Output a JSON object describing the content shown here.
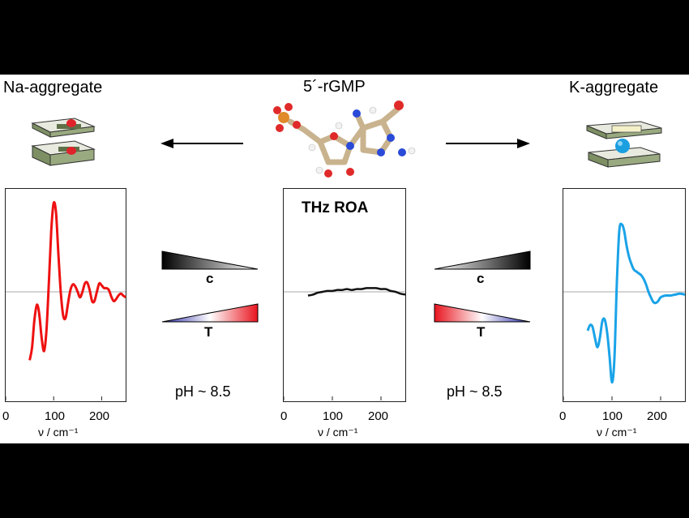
{
  "titles": {
    "left": "Na-aggregate",
    "center": "5´-rGMP",
    "right": "K-aggregate"
  },
  "center_plot_title": "THz ROA",
  "conditions": {
    "left_c_label": "c",
    "left_t_label": "T",
    "right_c_label": "c",
    "right_t_label": "T",
    "ph_left": "pH ~ 8.5",
    "ph_right": "pH ~ 8.5"
  },
  "axis": {
    "ticks": [
      "0",
      "100",
      "200"
    ],
    "xlabel": "ν / cm⁻¹"
  },
  "colors": {
    "na_curve": "#ee1111",
    "k_curve": "#1aa3e8",
    "center_curve": "#111111",
    "hot": "#e8141e",
    "cold": "#2a2aa8"
  },
  "chart_data": [
    {
      "type": "line",
      "title": "",
      "xlabel": "ν / cm⁻¹",
      "xlim": [
        0,
        250
      ],
      "ylim": [
        -1,
        1
      ],
      "series": [
        {
          "name": "",
          "x": [
            50,
            55,
            60,
            65,
            70,
            75,
            80,
            85,
            90,
            95,
            100,
            105,
            110,
            115,
            120,
            125,
            130,
            135,
            140,
            145,
            150,
            155,
            160,
            165,
            170,
            175,
            180,
            185,
            190,
            195,
            200,
            205,
            210,
            215,
            220,
            225,
            230,
            235,
            240,
            245,
            250
          ],
          "y": [
            -0.74,
            -0.6,
            -0.3,
            -0.14,
            -0.24,
            -0.5,
            -0.64,
            -0.42,
            0.1,
            0.66,
            0.96,
            0.85,
            0.4,
            -0.02,
            -0.26,
            -0.28,
            -0.12,
            0.02,
            0.08,
            0.06,
            0.0,
            -0.06,
            0.0,
            0.09,
            0.1,
            0.02,
            -0.1,
            -0.1,
            0.0,
            0.09,
            0.07,
            0.04,
            0.04,
            0.02,
            -0.05,
            -0.1,
            -0.08,
            -0.04,
            -0.02,
            -0.04,
            -0.06
          ]
        }
      ]
    },
    {
      "type": "line",
      "title": "THz ROA",
      "xlabel": "ν / cm⁻¹",
      "xlim": [
        0,
        250
      ],
      "ylim": [
        -1,
        1
      ],
      "series": [
        {
          "name": "",
          "x": [
            50,
            60,
            70,
            80,
            90,
            100,
            110,
            120,
            130,
            140,
            150,
            160,
            170,
            180,
            190,
            200,
            210,
            220,
            230,
            240,
            250
          ],
          "y": [
            -0.04,
            -0.03,
            -0.01,
            0.0,
            0.01,
            0.01,
            0.02,
            0.02,
            0.03,
            0.02,
            0.03,
            0.03,
            0.04,
            0.04,
            0.04,
            0.03,
            0.03,
            0.01,
            0.0,
            -0.02,
            -0.03
          ]
        }
      ]
    },
    {
      "type": "line",
      "title": "",
      "xlabel": "ν / cm⁻¹",
      "xlim": [
        0,
        250
      ],
      "ylim": [
        -1,
        1
      ],
      "series": [
        {
          "name": "",
          "x": [
            50,
            55,
            60,
            65,
            70,
            75,
            80,
            85,
            90,
            95,
            100,
            105,
            110,
            115,
            120,
            125,
            130,
            135,
            140,
            145,
            150,
            155,
            160,
            165,
            170,
            175,
            180,
            185,
            190,
            195,
            200,
            210,
            220,
            230,
            240,
            250
          ],
          "y": [
            -0.42,
            -0.36,
            -0.38,
            -0.5,
            -0.6,
            -0.5,
            -0.32,
            -0.3,
            -0.44,
            -0.7,
            -0.98,
            -0.72,
            0.1,
            0.66,
            0.73,
            0.66,
            0.5,
            0.38,
            0.3,
            0.24,
            0.22,
            0.2,
            0.18,
            0.14,
            0.08,
            0.0,
            -0.06,
            -0.11,
            -0.12,
            -0.1,
            -0.06,
            -0.04,
            -0.04,
            -0.03,
            -0.02,
            -0.03
          ]
        }
      ]
    }
  ]
}
